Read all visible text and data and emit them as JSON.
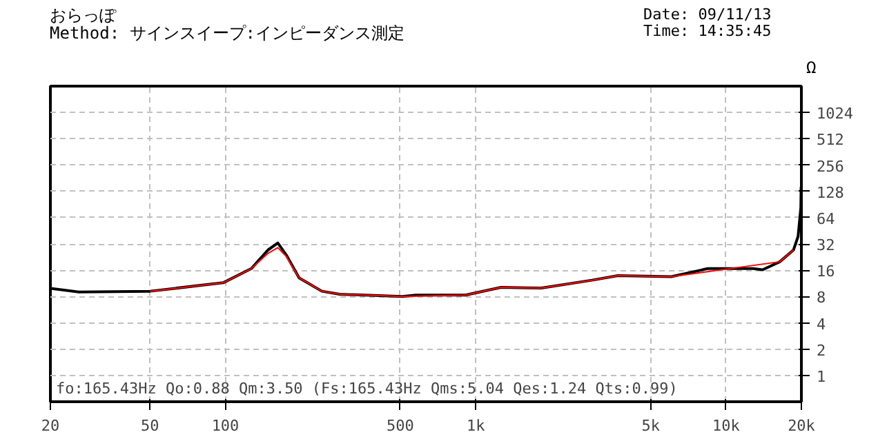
{
  "chart_data": {
    "type": "line",
    "subtitle": "おらっぽ",
    "annotations": [
      "Method: サインスイープ:インピーダンス測定",
      "Date: 09/11/13",
      "Time: 14:35:45",
      "fo:165.43Hz  Qo:0.88 Qm:3.50 (Fs:165.43Hz  Qms:5.04 Qes:1.24 Qts:0.99)"
    ],
    "ylabel": "Ω",
    "log": "xy",
    "grid": true,
    "marker": "none",
    "line_style": "solid",
    "xlim": [
      20,
      20000
    ],
    "ylim": [
      0.5,
      2048
    ],
    "xticks": [
      20,
      50,
      100,
      500,
      {
        "value": 1000,
        "label": "1k"
      },
      {
        "value": 5000,
        "label": "5k"
      },
      {
        "value": 10000,
        "label": "10k"
      },
      {
        "value": 20000,
        "label": "20k"
      }
    ],
    "yticks": [
      1,
      2,
      4,
      8,
      16,
      32,
      64,
      128,
      256,
      512,
      1024
    ],
    "series": [
      {
        "color": "#000000",
        "x": [
          20,
          26,
          50,
          98,
          127,
          148,
          162,
          175,
          197,
          243,
          286,
          510,
          578,
          910,
          1262,
          1830,
          2915,
          3700,
          6050,
          8450,
          12800,
          14000,
          16400,
          18600,
          19400,
          19900,
          19950
        ],
        "values": [
          9.9,
          9.0,
          9.2,
          11.5,
          16.7,
          27.3,
          32.8,
          24,
          13.1,
          9.2,
          8.5,
          8.0,
          8.3,
          8.3,
          10.2,
          10,
          12.3,
          13.9,
          13.5,
          16.7,
          16.7,
          16.2,
          20,
          27.3,
          39,
          83,
          144
        ]
      },
      {
        "color": "#ff0000",
        "x": [
          50,
          98,
          127,
          148,
          162,
          175,
          197,
          243,
          286,
          510,
          910,
          1262,
          1830,
          2915,
          3700,
          6050,
          16400,
          18600
        ],
        "values": [
          9.2,
          11.5,
          16.7,
          25,
          29,
          23,
          13.1,
          9.2,
          8.5,
          8.0,
          8.3,
          10.2,
          10,
          12.3,
          13.9,
          13.5,
          20,
          27.3
        ]
      }
    ]
  }
}
